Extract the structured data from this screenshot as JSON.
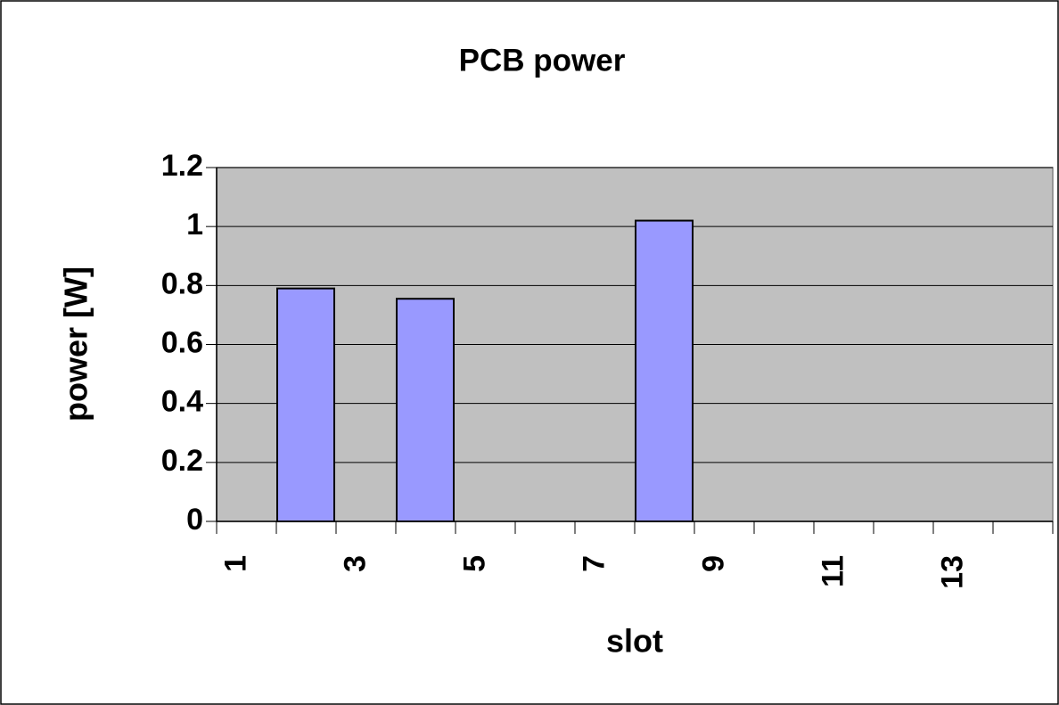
{
  "chart_data": {
    "type": "bar",
    "title": "PCB power",
    "x_label": "slot",
    "y_label": "power [W]",
    "categories": [
      "1",
      null,
      "3",
      null,
      "5",
      null,
      "7",
      null,
      "9",
      null,
      "11",
      null,
      "13",
      null
    ],
    "values": [
      0,
      0.79,
      0,
      0.755,
      0,
      0,
      0,
      1.02,
      0,
      0,
      0,
      0,
      0,
      0
    ],
    "color": "#9999ff",
    "ylim": [
      0,
      1.2
    ],
    "yticks": [
      0,
      0.2,
      0.4,
      0.6,
      0.8,
      1,
      1.2
    ],
    "grid": true
  }
}
